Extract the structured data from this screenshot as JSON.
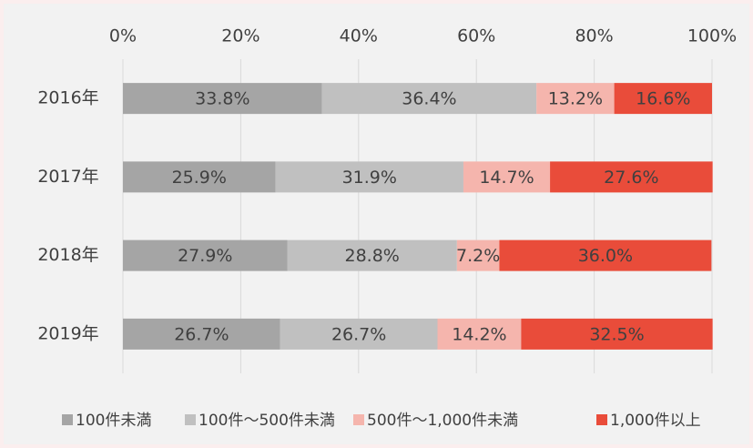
{
  "chart_data": {
    "type": "stacked-bar-horizontal",
    "categories": [
      "2016年",
      "2017年",
      "2018年",
      "2019年"
    ],
    "series": [
      {
        "name": "100件未満",
        "color": "#a5a5a5",
        "values": [
          33.8,
          25.9,
          27.9,
          26.7
        ],
        "value_labels": [
          "33.8%",
          "25.9%",
          "27.9%",
          "26.7%"
        ]
      },
      {
        "name": "100件～500件未満",
        "color": "#c0c0c0",
        "values": [
          36.4,
          31.9,
          28.8,
          26.7
        ],
        "value_labels": [
          "36.4%",
          "31.9%",
          "28.8%",
          "26.7%"
        ]
      },
      {
        "name": "500件～1,000件未満",
        "color": "#f5b5ad",
        "values": [
          13.2,
          14.7,
          7.2,
          14.2
        ],
        "value_labels": [
          "13.2%",
          "14.7%",
          "7.2%",
          "14.2%"
        ]
      },
      {
        "name": "1,000件以上",
        "color": "#e94c3a",
        "values": [
          16.6,
          27.6,
          36.0,
          32.5
        ],
        "value_labels": [
          "16.6%",
          "27.6%",
          "36.0%",
          "32.5%"
        ]
      }
    ],
    "xlim": [
      0,
      100
    ],
    "xticks": [
      {
        "value": 0,
        "label": "0%"
      },
      {
        "value": 20,
        "label": "20%"
      },
      {
        "value": 40,
        "label": "40%"
      },
      {
        "value": 60,
        "label": "60%"
      },
      {
        "value": 80,
        "label": "80%"
      },
      {
        "value": 100,
        "label": "100%"
      }
    ],
    "grid": true,
    "legend": "bottom"
  }
}
